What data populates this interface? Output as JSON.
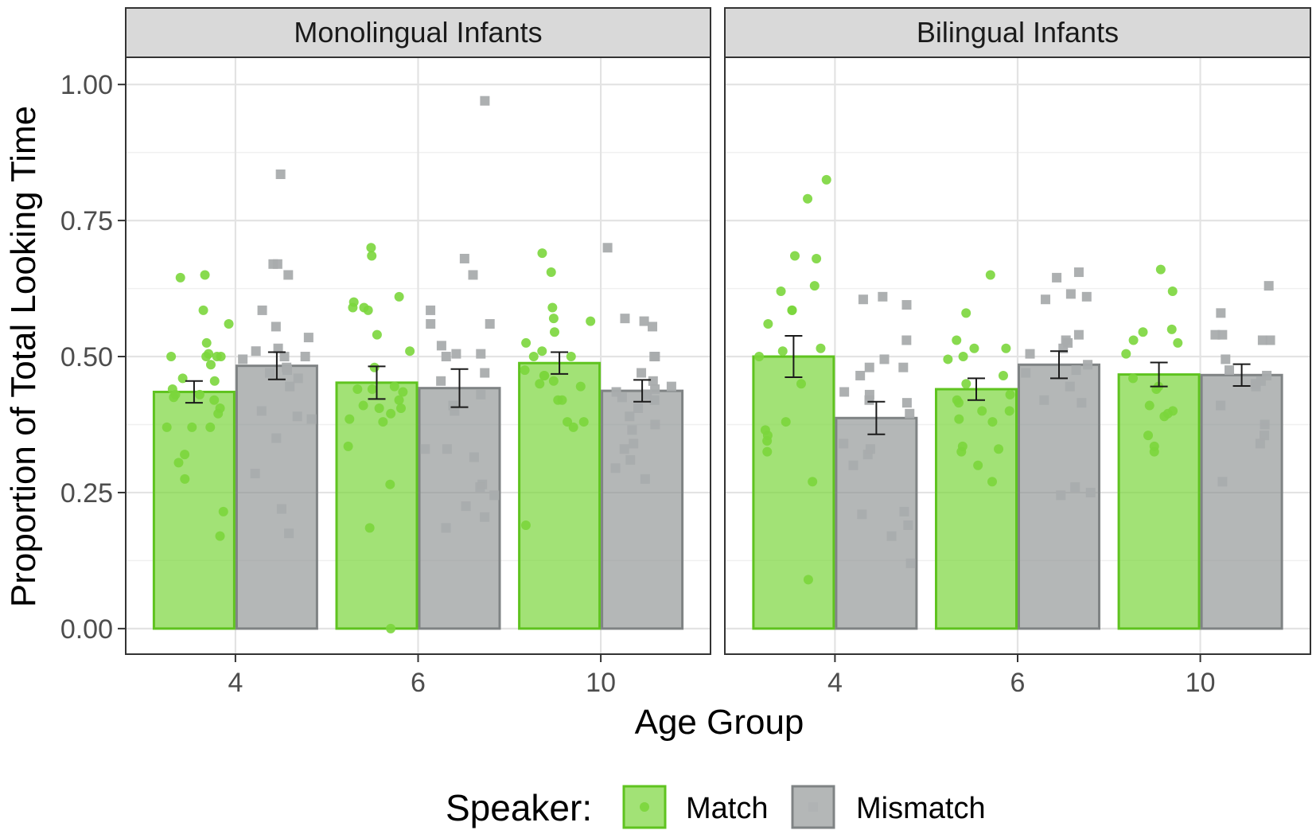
{
  "chart_data": {
    "type": "bar",
    "xlabel": "Age Group",
    "ylabel": "Proportion of Total Looking Time",
    "ylim": [
      -0.047,
      1.05
    ],
    "yticks": [
      0.0,
      0.25,
      0.5,
      0.75,
      1.0
    ],
    "ytick_labels": [
      "0.00",
      "0.25",
      "0.50",
      "0.75",
      "1.00"
    ],
    "categories": [
      "4",
      "6",
      "10"
    ],
    "grid": true,
    "legend": {
      "title": "Speaker:",
      "position": "bottom",
      "entries": [
        {
          "name": "Match",
          "color": "#7bd63c"
        },
        {
          "name": "Mismatch",
          "color": "#8c9091"
        }
      ]
    },
    "panels": [
      {
        "title": "Monolingual Infants",
        "series": [
          {
            "name": "Match",
            "values": [
              0.435,
              0.452,
              0.488
            ],
            "se": [
              0.02,
              0.03,
              0.02
            ],
            "points": [
              [
                0.65,
                0.645,
                0.585,
                0.56,
                0.525,
                0.5,
                0.5,
                0.5,
                0.505,
                0.5,
                0.485,
                0.46,
                0.455,
                0.44,
                0.43,
                0.43,
                0.425,
                0.42,
                0.405,
                0.395,
                0.37,
                0.37,
                0.37,
                0.32,
                0.305,
                0.275,
                0.215,
                0.17
              ],
              [
                0.7,
                0.685,
                0.61,
                0.6,
                0.59,
                0.59,
                0.585,
                0.54,
                0.51,
                0.48,
                0.445,
                0.44,
                0.44,
                0.435,
                0.42,
                0.41,
                0.405,
                0.405,
                0.395,
                0.385,
                0.38,
                0.335,
                0.265,
                0.185,
                0.0
              ],
              [
                0.69,
                0.655,
                0.59,
                0.57,
                0.565,
                0.545,
                0.525,
                0.51,
                0.5,
                0.5,
                0.475,
                0.465,
                0.465,
                0.455,
                0.45,
                0.445,
                0.42,
                0.42,
                0.38,
                0.38,
                0.37,
                0.19
              ]
            ]
          },
          {
            "name": "Mismatch",
            "values": [
              0.483,
              0.442,
              0.437
            ],
            "se": [
              0.025,
              0.035,
              0.02
            ],
            "points": [
              [
                0.835,
                0.67,
                0.67,
                0.65,
                0.585,
                0.555,
                0.535,
                0.51,
                0.515,
                0.5,
                0.5,
                0.495,
                0.48,
                0.475,
                0.47,
                0.46,
                0.445,
                0.4,
                0.39,
                0.385,
                0.35,
                0.285,
                0.22,
                0.175
              ],
              [
                0.97,
                0.68,
                0.65,
                0.585,
                0.56,
                0.56,
                0.52,
                0.505,
                0.505,
                0.5,
                0.47,
                0.455,
                0.43,
                0.41,
                0.4,
                0.33,
                0.33,
                0.315,
                0.265,
                0.26,
                0.245,
                0.225,
                0.205,
                0.185
              ],
              [
                0.7,
                0.57,
                0.565,
                0.555,
                0.5,
                0.5,
                0.47,
                0.455,
                0.445,
                0.44,
                0.435,
                0.43,
                0.425,
                0.42,
                0.405,
                0.39,
                0.375,
                0.365,
                0.34,
                0.33,
                0.31,
                0.295,
                0.275
              ]
            ]
          }
        ]
      },
      {
        "title": "Bilingual Infants",
        "series": [
          {
            "name": "Match",
            "values": [
              0.5,
              0.44,
              0.467
            ],
            "se": [
              0.038,
              0.02,
              0.022
            ],
            "points": [
              [
                0.825,
                0.79,
                0.685,
                0.68,
                0.63,
                0.62,
                0.585,
                0.585,
                0.56,
                0.515,
                0.51,
                0.5,
                0.45,
                0.38,
                0.365,
                0.355,
                0.345,
                0.325,
                0.27,
                0.09
              ],
              [
                0.65,
                0.58,
                0.53,
                0.515,
                0.515,
                0.5,
                0.495,
                0.465,
                0.45,
                0.43,
                0.42,
                0.415,
                0.4,
                0.4,
                0.385,
                0.38,
                0.335,
                0.33,
                0.325,
                0.3,
                0.27
              ],
              [
                0.66,
                0.62,
                0.55,
                0.545,
                0.53,
                0.525,
                0.505,
                0.46,
                0.445,
                0.44,
                0.41,
                0.4,
                0.395,
                0.39,
                0.355,
                0.335,
                0.325
              ]
            ]
          },
          {
            "name": "Mismatch",
            "values": [
              0.387,
              0.485,
              0.466
            ],
            "se": [
              0.03,
              0.025,
              0.02
            ],
            "points": [
              [
                0.61,
                0.605,
                0.595,
                0.53,
                0.495,
                0.48,
                0.48,
                0.465,
                0.435,
                0.43,
                0.42,
                0.415,
                0.395,
                0.34,
                0.33,
                0.32,
                0.3,
                0.215,
                0.21,
                0.19,
                0.17,
                0.12
              ],
              [
                0.655,
                0.645,
                0.615,
                0.61,
                0.605,
                0.54,
                0.53,
                0.525,
                0.515,
                0.505,
                0.485,
                0.475,
                0.47,
                0.445,
                0.42,
                0.415,
                0.26,
                0.25,
                0.245
              ],
              [
                0.63,
                0.58,
                0.54,
                0.54,
                0.53,
                0.53,
                0.495,
                0.475,
                0.465,
                0.455,
                0.45,
                0.445,
                0.41,
                0.375,
                0.355,
                0.34,
                0.27
              ]
            ]
          }
        ]
      }
    ]
  }
}
